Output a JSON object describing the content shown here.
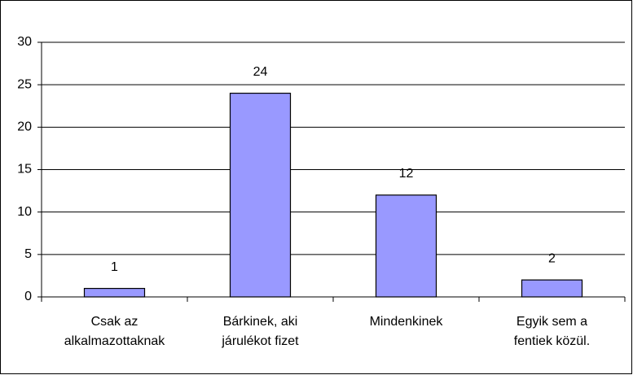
{
  "chart_data": {
    "type": "bar",
    "categories": [
      "Csak az\nalkalmazottaknak",
      "Bárkinek, aki\njárulékot fizet",
      "Mindenkinek",
      "Egyik sem a\nfentiek közül."
    ],
    "values": [
      1,
      24,
      12,
      2
    ],
    "color": "#9999ff",
    "ylim": [
      0,
      30
    ],
    "yticks": [
      0,
      5,
      10,
      15,
      20,
      25,
      30
    ],
    "grid": true
  }
}
